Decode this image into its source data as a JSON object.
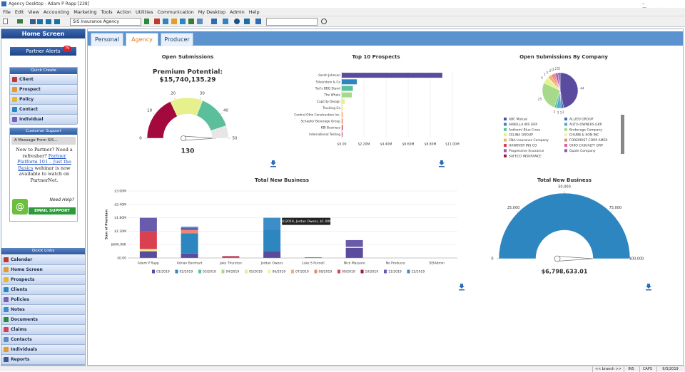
{
  "window": {
    "title": "Agency Desktop - Adam P Rapp [238]"
  },
  "menu": [
    "File",
    "Edit",
    "View",
    "Accounting",
    "Marketing",
    "Tools",
    "Action",
    "Utilities",
    "Communication",
    "My Desktop",
    "Admin",
    "Help"
  ],
  "toolbar": {
    "agency": "SIS Insurance Agency"
  },
  "sidebar": {
    "title": "Home Screen",
    "partner_alerts": {
      "label": "Partner Alerts",
      "count": 79
    },
    "quick_create": {
      "title": "Quick Create",
      "items": [
        "Client",
        "Prospect",
        "Policy",
        "Contact",
        "Individual"
      ]
    },
    "customer_support": {
      "title": "Customer Support",
      "message_title": "A Message From SIS...",
      "message_before": "New to Partner? Need a refresher?",
      "link": "Partner Platform 101 – Just the Basics",
      "message_after": "webinar is now available to watch on PartnerNet.",
      "need_help": "Need Help?",
      "button": "EMAIL SUPPORT"
    },
    "quick_links": {
      "title": "Quick Links",
      "items": [
        "Calendar",
        "Home Screen",
        "Prospects",
        "Clients",
        "Policies",
        "Notes",
        "Documents",
        "Claims",
        "Contacts",
        "Individuals",
        "Reports"
      ]
    }
  },
  "tabs": [
    "Personal",
    "Agency",
    "Producer"
  ],
  "active_tab": 1,
  "status_bar": [
    "<< branch >>",
    "INS",
    "CAPS",
    "9/3/2019"
  ],
  "chart_data": [
    {
      "type": "gauge",
      "title": "Open Submissions",
      "subtitle": "Premium Potential:",
      "total": "$15,740,135.29",
      "value": 130,
      "lim": [
        0,
        50
      ],
      "ticks": [
        0,
        10,
        20,
        30,
        40,
        50
      ],
      "bands": [
        {
          "from": 0,
          "to": 18,
          "color": "#a3093d"
        },
        {
          "from": 18,
          "to": 31,
          "color": "#e6f08c"
        },
        {
          "from": 31,
          "to": 45,
          "color": "#5cbf9b"
        },
        {
          "from": 45,
          "to": 50,
          "color": "#e6e6e6"
        }
      ]
    },
    {
      "type": "barh",
      "title": "Top 10 Prospects",
      "categories": [
        "Sarah Johnson",
        "Silverstein & Co",
        "Ted's BBQ Stand",
        "The Whale",
        "CapCity Design",
        "Trucking Co",
        "Central Ohio Construction Inc.",
        "Schaefer Beverage Group",
        "KBI Business",
        "International Testing"
      ],
      "values": [
        10000000,
        1500000,
        1100000,
        1000000,
        300000,
        150000,
        100000,
        100000,
        100000,
        50000
      ],
      "colors": [
        "#5b4b9f",
        "#2e86c1",
        "#5cbf9b",
        "#a7d98a",
        "#e6f08c",
        "#f5eeb0",
        "#f2b06a",
        "#e98a75",
        "#d94052",
        "#9e1a3a"
      ],
      "xlim": [
        0,
        11000000
      ],
      "xticks": [
        {
          "value": 0,
          "label": "$0.00"
        },
        {
          "value": 2200000,
          "label": "$2.20M"
        },
        {
          "value": 4400000,
          "label": "$4.40M"
        },
        {
          "value": 6600000,
          "label": "$6.60M"
        },
        {
          "value": 8800000,
          "label": "$8.80M"
        },
        {
          "value": 11000000,
          "label": "$11.00M"
        }
      ]
    },
    {
      "type": "pie",
      "title": "Open Submissions By Company",
      "labels": [
        "ABC Mutual",
        "ALLIED GROUP",
        "ARBELLA INS GRP",
        "AUTO-OWNERS GRP",
        "Anthem/ Blue Cross",
        "Brokerage Company",
        "CELINA GROUP",
        "CHUBB & SON INC",
        "CNA Insurance Company",
        "FOREMOST CORP AMER",
        "HANOVER INS CO",
        "OHIO CASUALTY GRP",
        "Progressive Insurance",
        "Quote Company",
        "SAFECO INSURANCE"
      ],
      "values": [
        44,
        2,
        1,
        3,
        2,
        25,
        5,
        1,
        3,
        2,
        1,
        1,
        2,
        1,
        1
      ],
      "colors": [
        "#5b4b9f",
        "#3c6fb4",
        "#2e86c1",
        "#4aa8c8",
        "#5cbf9b",
        "#a7d98a",
        "#e6f08c",
        "#f5eeb0",
        "#f2b06a",
        "#e98a75",
        "#d94052",
        "#e0609a",
        "#b04fa8",
        "#7e5cb8",
        "#9e1a3a"
      ]
    },
    {
      "type": "stacked_bar",
      "title": "Total New Business",
      "ylabel": "Sum of Premium",
      "categories": [
        "Adam P Rapp",
        "Adrian Barnhart",
        "Jake Thurston",
        "Jordan Owens",
        "Luke S Purnell",
        "Nick Massaro",
        "No Producer",
        "SISAdmin"
      ],
      "series": [
        {
          "name": "01/2019",
          "color": "#5b4b9f",
          "values": [
            300000,
            200000,
            0,
            300000,
            0,
            450000,
            0,
            0
          ]
        },
        {
          "name": "02/2019",
          "color": "#2e86c1",
          "values": [
            0,
            900000,
            0,
            1000000,
            0,
            0,
            0,
            0
          ]
        },
        {
          "name": "03/2019",
          "color": "#5cbf9b",
          "values": [
            0,
            0,
            0,
            0,
            0,
            0,
            0,
            0
          ]
        },
        {
          "name": "04/2019",
          "color": "#a7d98a",
          "values": [
            0,
            0,
            0,
            0,
            0,
            0,
            0,
            0
          ]
        },
        {
          "name": "05/2019",
          "color": "#e6f08c",
          "values": [
            100000,
            0,
            0,
            0,
            0,
            50000,
            0,
            0
          ]
        },
        {
          "name": "06/2019",
          "color": "#f5eeb0",
          "values": [
            0,
            0,
            0,
            0,
            0,
            0,
            0,
            0
          ]
        },
        {
          "name": "07/2019",
          "color": "#f2b06a",
          "values": [
            0,
            0,
            0,
            0,
            0,
            0,
            0,
            0
          ]
        },
        {
          "name": "08/2019",
          "color": "#e98a75",
          "values": [
            0,
            150000,
            0,
            0,
            0,
            0,
            0,
            0
          ]
        },
        {
          "name": "09/2019",
          "color": "#d94052",
          "values": [
            800000,
            0,
            50000,
            0,
            30000,
            0,
            0,
            0
          ]
        },
        {
          "name": "10/2019",
          "color": "#9e1a3a",
          "values": [
            0,
            0,
            30000,
            0,
            0,
            0,
            0,
            0
          ]
        },
        {
          "name": "11/2019",
          "color": "#6a5aab",
          "values": [
            600000,
            100000,
            0,
            0,
            0,
            300000,
            0,
            0
          ]
        },
        {
          "name": "12/2019",
          "color": "#3c8dc8",
          "values": [
            0,
            50000,
            0,
            500000,
            0,
            0,
            0,
            0
          ]
        }
      ],
      "ylim": [
        0,
        3000000
      ],
      "yticks": [
        {
          "value": 0,
          "label": "$0.00"
        },
        {
          "value": 600000,
          "label": "$600.00K"
        },
        {
          "value": 1200000,
          "label": "$1.20M"
        },
        {
          "value": 1800000,
          "label": "$1.80M"
        },
        {
          "value": 2400000,
          "label": "$2.40M"
        },
        {
          "value": 3000000,
          "label": "$3.00M"
        }
      ],
      "grid": true,
      "tooltip": "02/2019, Jordan Owens, $1.00M"
    },
    {
      "type": "gauge",
      "title": "Total New Business",
      "total": "$6,798,633.01",
      "lim": [
        0,
        100000
      ],
      "ticks": [
        0,
        {
          "value": 25000,
          "label": "25,000"
        },
        {
          "value": 50000,
          "label": "50,000"
        },
        {
          "value": 75000,
          "label": "75,000"
        },
        {
          "value": 100000,
          "label": "100,000"
        }
      ],
      "bands": [
        {
          "from": 0,
          "to": 100000,
          "color": "#2e86c1"
        }
      ]
    }
  ]
}
